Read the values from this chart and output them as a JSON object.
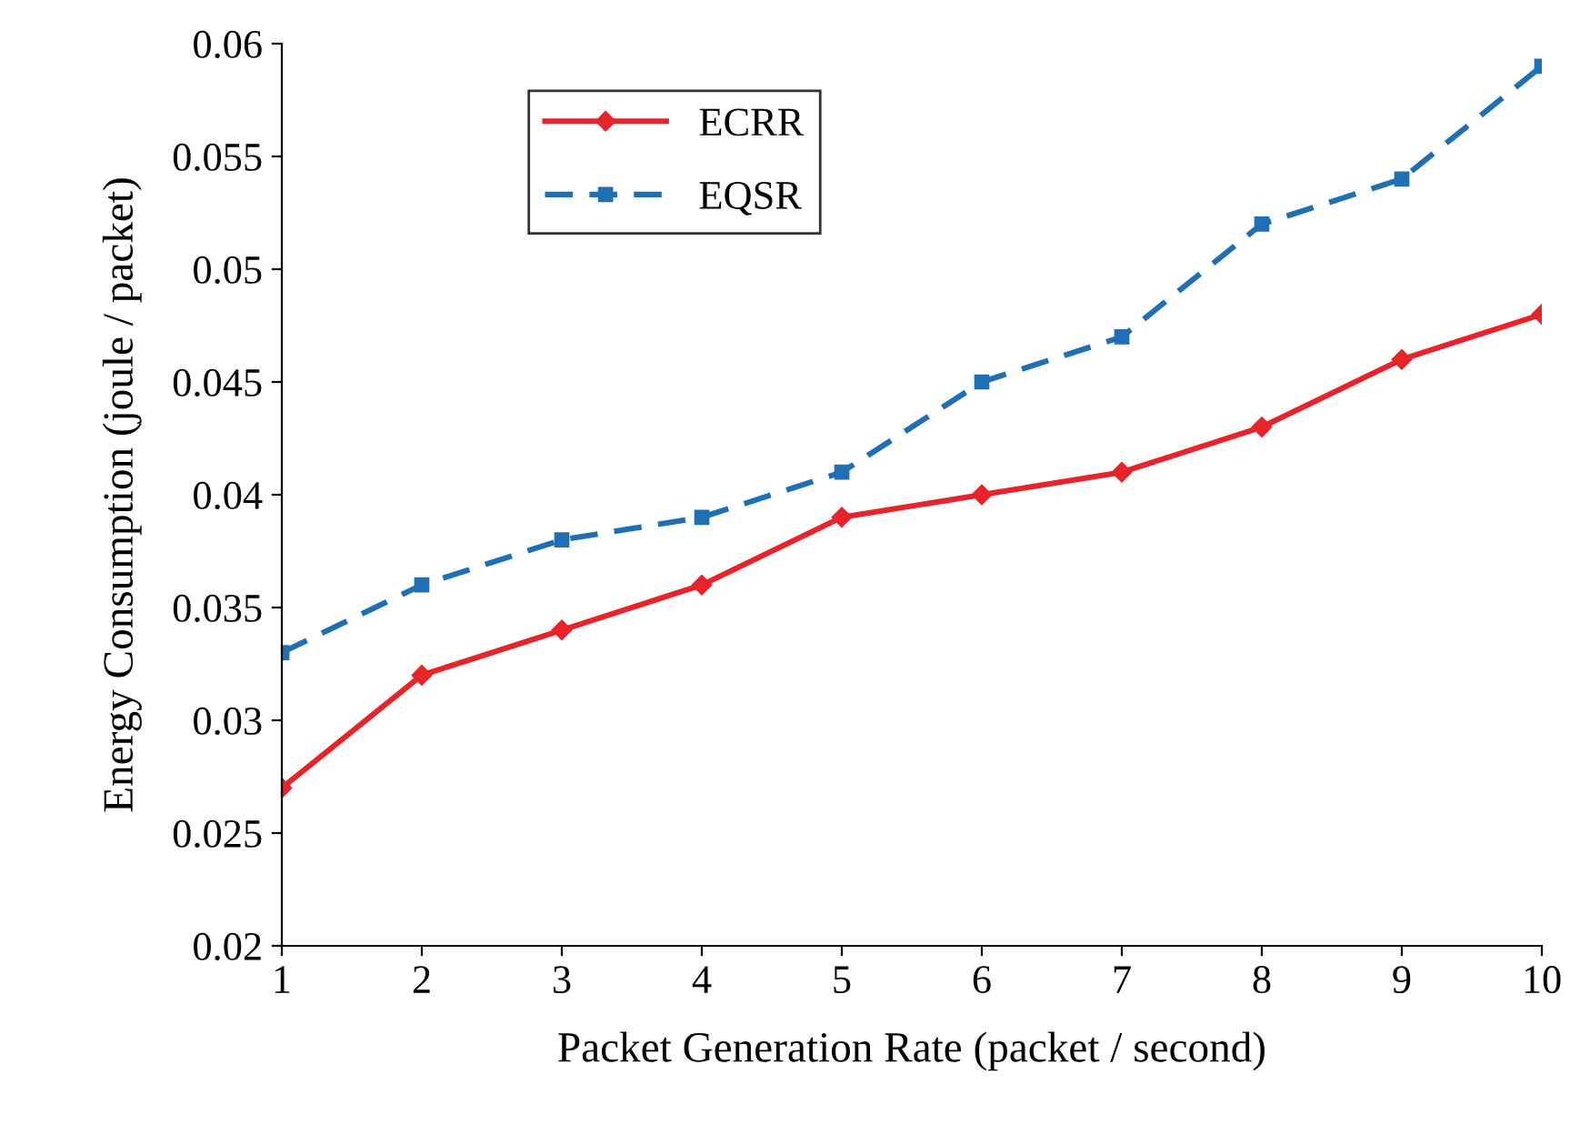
{
  "chart_data": {
    "type": "line",
    "xlabel": "Packet Generation Rate (packet / second)",
    "ylabel": "Energy Consumption (joule / packet)",
    "x": [
      1,
      2,
      3,
      4,
      5,
      6,
      7,
      8,
      9,
      10
    ],
    "series": [
      {
        "name": "ECRR",
        "color": "#e8232a",
        "marker": "diamond",
        "line_style": "solid",
        "values": [
          0.027,
          0.032,
          0.034,
          0.036,
          0.039,
          0.04,
          0.041,
          0.043,
          0.046,
          0.048
        ]
      },
      {
        "name": "EQSR",
        "color": "#1f6fb5",
        "marker": "square",
        "line_style": "dashed",
        "values": [
          0.033,
          0.036,
          0.038,
          0.039,
          0.041,
          0.045,
          0.047,
          0.052,
          0.054,
          0.059
        ]
      }
    ],
    "xlim": [
      1,
      10
    ],
    "xticks": [
      1,
      2,
      3,
      4,
      5,
      6,
      7,
      8,
      9,
      10
    ],
    "ylim": [
      0.02,
      0.06
    ],
    "yticks": [
      0.02,
      0.025,
      0.03,
      0.035,
      0.04,
      0.045,
      0.05,
      0.055,
      0.06
    ],
    "grid": false,
    "legend": "top left"
  }
}
